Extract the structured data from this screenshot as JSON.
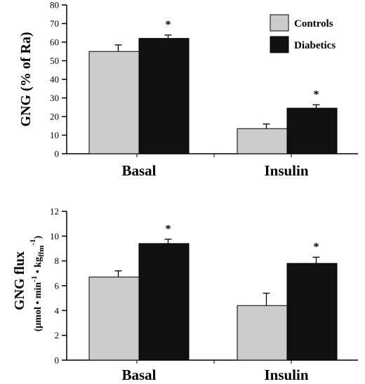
{
  "legend": {
    "items": [
      {
        "name": "Controls",
        "color": "#cccccc"
      },
      {
        "name": "Diabetics",
        "color": "#111111"
      }
    ]
  },
  "chart_data": [
    {
      "type": "bar",
      "categories": [
        "Basal",
        "Insulin"
      ],
      "ylabel": "GNG (% of Ra)",
      "ylim": [
        0,
        80
      ],
      "yticks": [
        0,
        10,
        20,
        30,
        40,
        50,
        60,
        70,
        80
      ],
      "series": [
        {
          "name": "Controls",
          "values": [
            55,
            13.5
          ],
          "errors": [
            3.5,
            2.5
          ],
          "color": "#cccccc"
        },
        {
          "name": "Diabetics",
          "values": [
            62,
            24.5
          ],
          "errors": [
            1.8,
            1.8
          ],
          "color": "#111111"
        }
      ],
      "annotations": [
        "*",
        "*"
      ],
      "legend_position": "top-right"
    },
    {
      "type": "bar",
      "categories": [
        "Basal",
        "Insulin"
      ],
      "ylabel": {
        "main": "GNG flux",
        "unit_parts": [
          "(μmol • min",
          "-1",
          " • kg",
          "ffm",
          "-1",
          ")"
        ]
      },
      "ylim": [
        0,
        12
      ],
      "yticks": [
        0,
        2,
        4,
        6,
        8,
        10,
        12
      ],
      "series": [
        {
          "name": "Controls",
          "values": [
            6.7,
            4.4
          ],
          "errors": [
            0.5,
            1.0
          ],
          "color": "#cccccc"
        },
        {
          "name": "Diabetics",
          "values": [
            9.4,
            7.8
          ],
          "errors": [
            0.35,
            0.5
          ],
          "color": "#111111"
        }
      ],
      "annotations": [
        "*",
        "*"
      ]
    }
  ]
}
